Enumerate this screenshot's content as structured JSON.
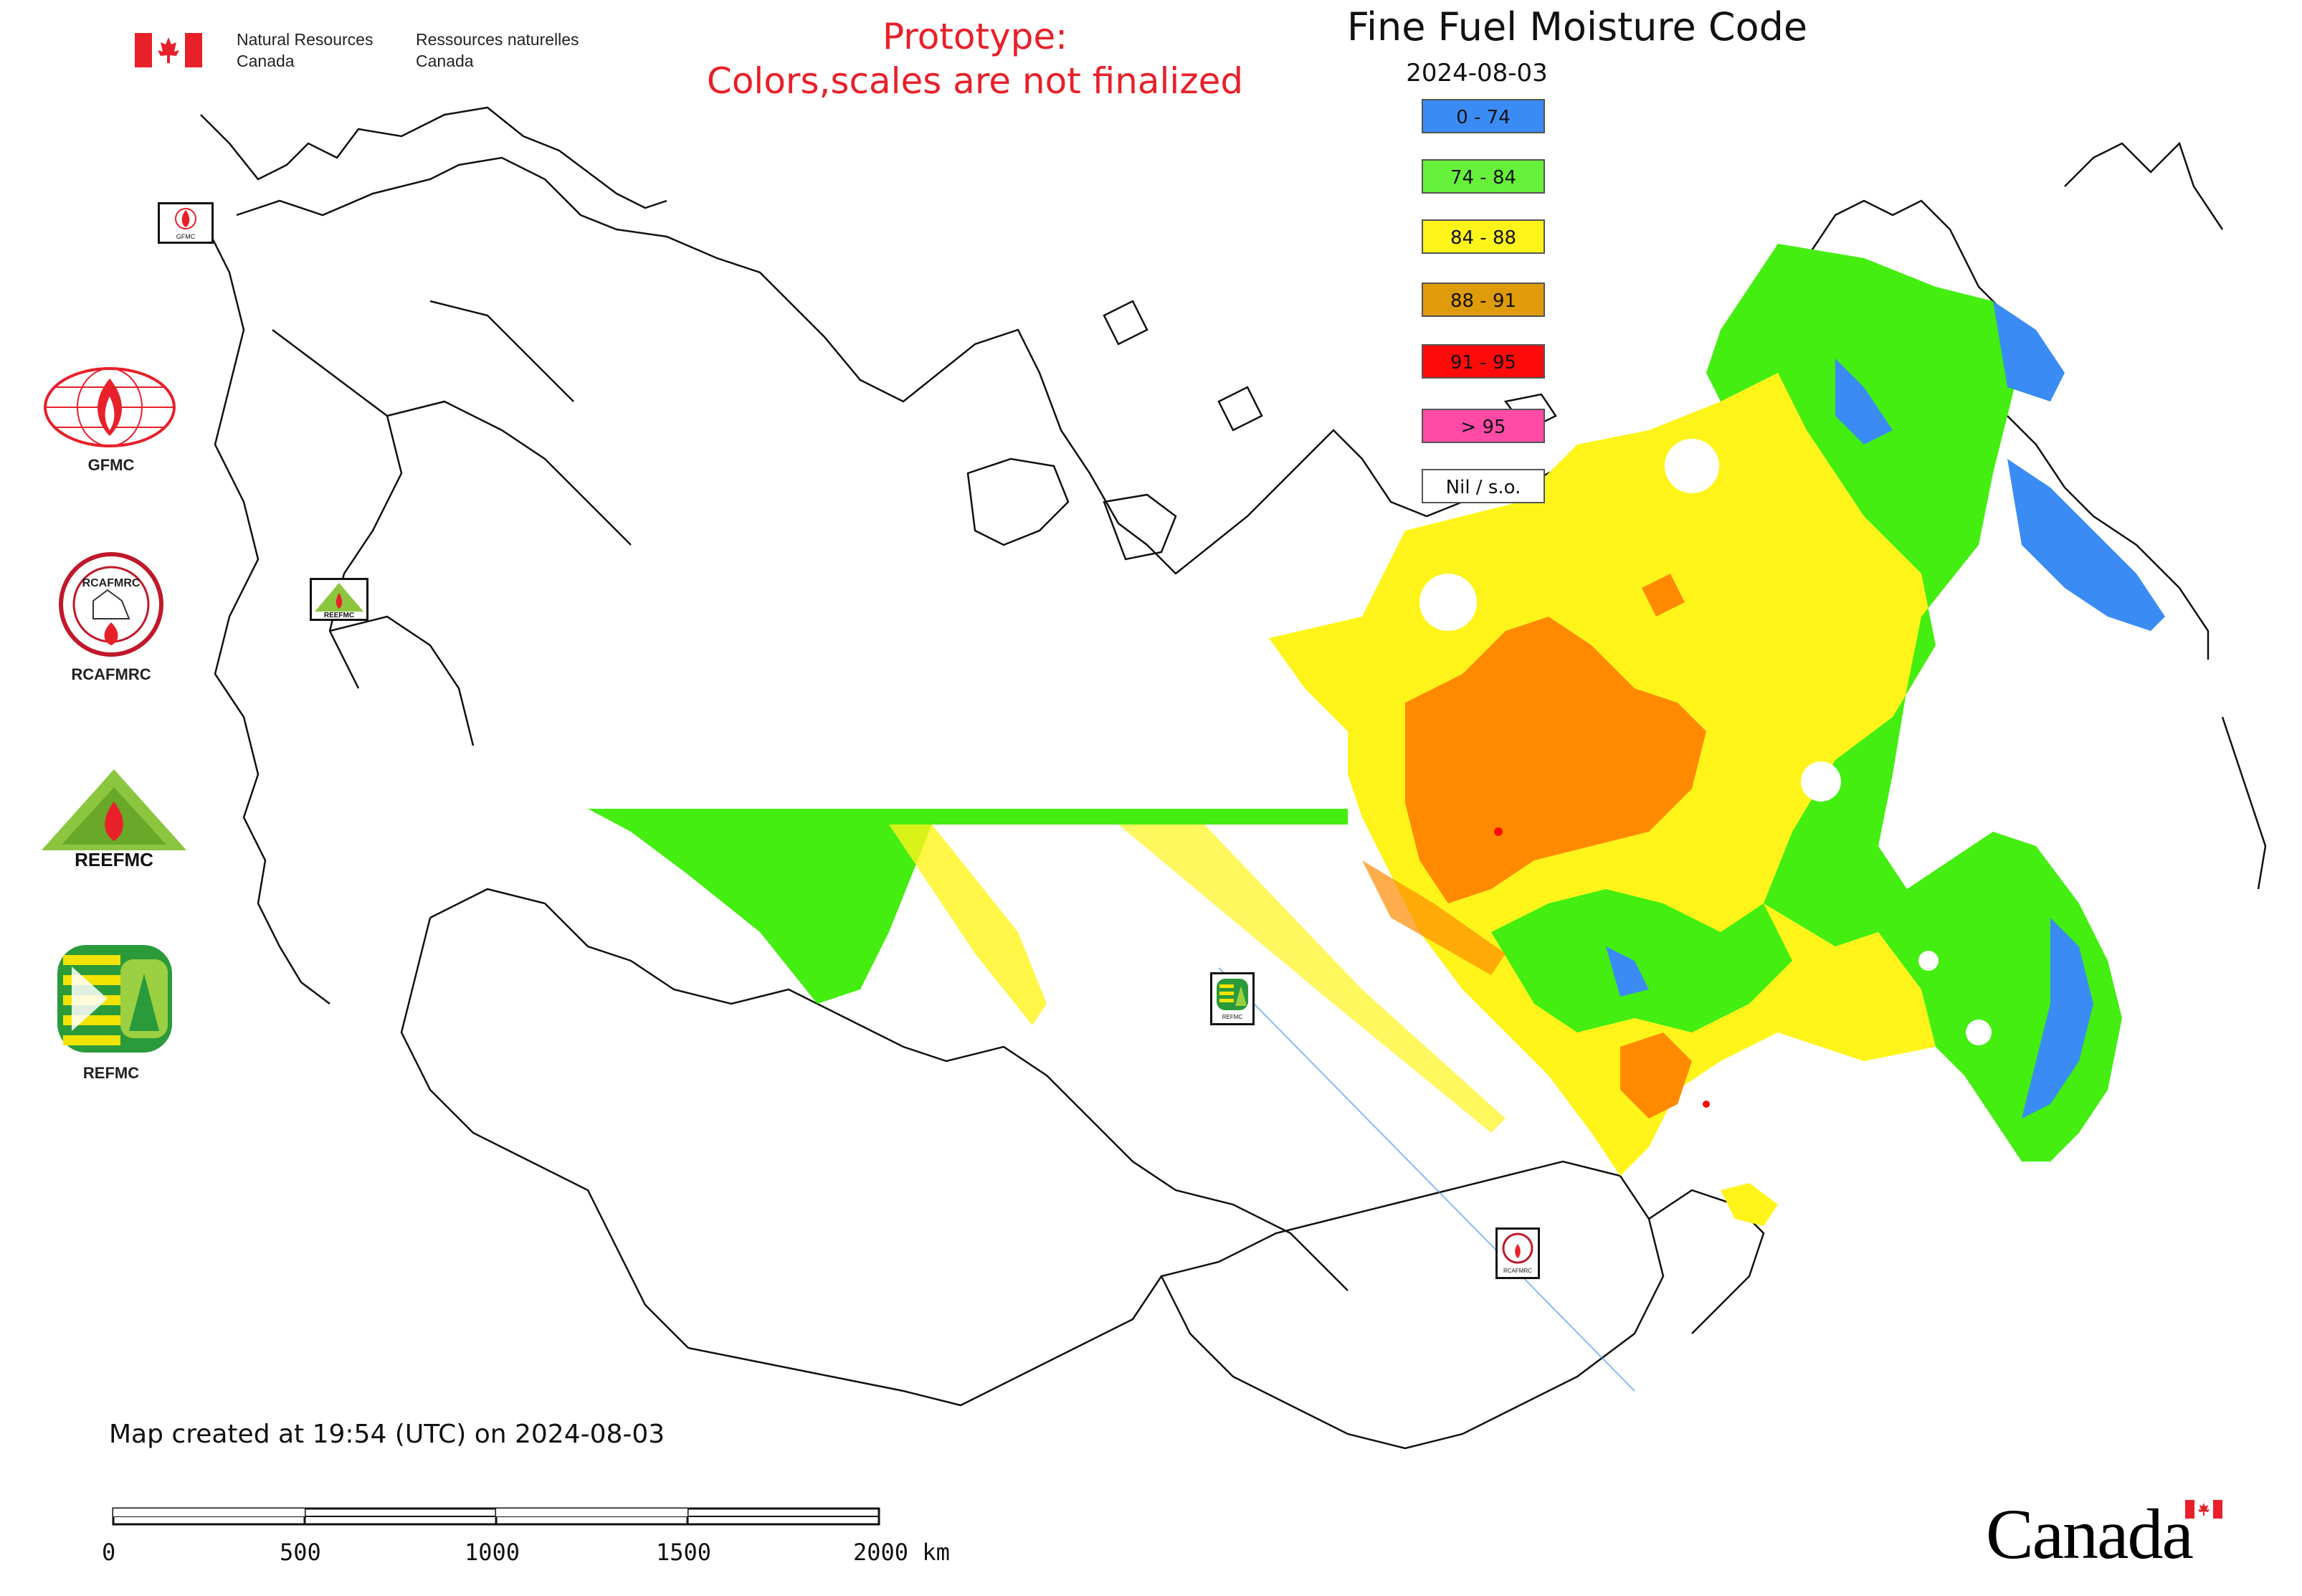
{
  "header": {
    "dept_en_line1": "Natural Resources",
    "dept_en_line2": "Canada",
    "dept_fr_line1": "Ressources naturelles",
    "dept_fr_line2": "Canada"
  },
  "prototype": {
    "line1": "Prototype:",
    "line2": "Colors,scales are not finalized"
  },
  "title": "Fine Fuel Moisture Code",
  "date": "2024-08-03",
  "legend": [
    {
      "label": "0 - 74",
      "color": "#3a8cf4"
    },
    {
      "label": "74 - 84",
      "color": "#66f23a"
    },
    {
      "label": "84 - 88",
      "color": "#fff41a"
    },
    {
      "label": "88 - 91",
      "color": "#e09b0a"
    },
    {
      "label": "91 - 95",
      "color": "#ff0a0a"
    },
    {
      "label": "> 95",
      "color": "#ff4aa6"
    },
    {
      "label": "Nil / s.o.",
      "color": "#ffffff"
    }
  ],
  "side_logos": [
    {
      "label": "GFMC",
      "icon": "gfmc-logo"
    },
    {
      "label": "RCAFMRC",
      "icon": "rcafmrc-logo"
    },
    {
      "label": "",
      "icon": "reefmc-logo"
    },
    {
      "label": "REFMC",
      "icon": "refmc-logo"
    }
  ],
  "map_badges": {
    "gfmc": "GFMC",
    "reefmc": "REEFMC",
    "refmc": "REFMC",
    "rcafmrc": "RCAFMRC"
  },
  "footer": {
    "created": "Map created at 19:54 (UTC) on 2024-08-03",
    "scale_ticks": [
      "0",
      "500",
      "1000",
      "1500",
      "2000 km"
    ],
    "wordmark": "Canada"
  },
  "colors": {
    "blue": "#3a8cf4",
    "green": "#44ee10",
    "yellow": "#fff41a",
    "orange": "#ff8a00",
    "red": "#ff0a0a",
    "prototype_red": "#e8202a"
  }
}
